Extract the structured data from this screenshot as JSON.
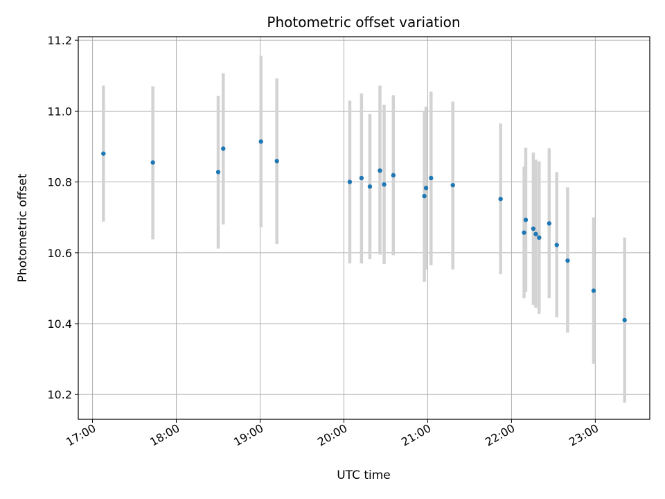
{
  "chart_data": {
    "type": "scatter",
    "title": "Photometric offset variation",
    "xlabel": "UTC time",
    "ylabel": "Photometric offset",
    "x_unit": "hours UTC",
    "xlim": [
      16.83,
      23.65
    ],
    "ylim": [
      10.13,
      11.21
    ],
    "x_ticks": [
      17,
      18,
      19,
      20,
      21,
      22,
      23
    ],
    "x_tick_labels": [
      "17:00",
      "18:00",
      "19:00",
      "20:00",
      "21:00",
      "22:00",
      "23:00"
    ],
    "y_ticks": [
      10.2,
      10.4,
      10.6,
      10.8,
      11.0,
      11.2
    ],
    "y_tick_labels": [
      "10.2",
      "10.4",
      "10.6",
      "10.8",
      "11.0",
      "11.2"
    ],
    "grid": true,
    "marker_color": "#1f77b4",
    "errorbar_color": "#d3d3d3",
    "points": [
      {
        "x": 17.13,
        "y": 10.88,
        "err_low": 10.688,
        "err_high": 11.072
      },
      {
        "x": 17.72,
        "y": 10.855,
        "err_low": 10.638,
        "err_high": 11.07
      },
      {
        "x": 18.5,
        "y": 10.828,
        "err_low": 10.612,
        "err_high": 11.043
      },
      {
        "x": 18.56,
        "y": 10.894,
        "err_low": 10.68,
        "err_high": 11.107
      },
      {
        "x": 19.01,
        "y": 10.914,
        "err_low": 10.672,
        "err_high": 11.156
      },
      {
        "x": 19.2,
        "y": 10.859,
        "err_low": 10.625,
        "err_high": 11.092
      },
      {
        "x": 20.07,
        "y": 10.8,
        "err_low": 10.57,
        "err_high": 11.03
      },
      {
        "x": 20.21,
        "y": 10.811,
        "err_low": 10.57,
        "err_high": 11.05
      },
      {
        "x": 20.31,
        "y": 10.787,
        "err_low": 10.582,
        "err_high": 10.992
      },
      {
        "x": 20.43,
        "y": 10.832,
        "err_low": 10.595,
        "err_high": 11.072
      },
      {
        "x": 20.48,
        "y": 10.793,
        "err_low": 10.568,
        "err_high": 11.018
      },
      {
        "x": 20.59,
        "y": 10.819,
        "err_low": 10.593,
        "err_high": 11.045
      },
      {
        "x": 20.96,
        "y": 10.76,
        "err_low": 10.518,
        "err_high": 11.0
      },
      {
        "x": 20.98,
        "y": 10.783,
        "err_low": 10.553,
        "err_high": 11.013
      },
      {
        "x": 21.04,
        "y": 10.811,
        "err_low": 10.565,
        "err_high": 11.055
      },
      {
        "x": 21.3,
        "y": 10.791,
        "err_low": 10.553,
        "err_high": 11.027
      },
      {
        "x": 21.87,
        "y": 10.752,
        "err_low": 10.54,
        "err_high": 10.965
      },
      {
        "x": 22.15,
        "y": 10.657,
        "err_low": 10.472,
        "err_high": 10.843
      },
      {
        "x": 22.17,
        "y": 10.693,
        "err_low": 10.49,
        "err_high": 10.897
      },
      {
        "x": 22.26,
        "y": 10.668,
        "err_low": 10.453,
        "err_high": 10.883
      },
      {
        "x": 22.29,
        "y": 10.653,
        "err_low": 10.445,
        "err_high": 10.863
      },
      {
        "x": 22.33,
        "y": 10.643,
        "err_low": 10.428,
        "err_high": 10.858
      },
      {
        "x": 22.45,
        "y": 10.683,
        "err_low": 10.472,
        "err_high": 10.895
      },
      {
        "x": 22.54,
        "y": 10.622,
        "err_low": 10.418,
        "err_high": 10.828
      },
      {
        "x": 22.67,
        "y": 10.578,
        "err_low": 10.375,
        "err_high": 10.785
      },
      {
        "x": 22.98,
        "y": 10.493,
        "err_low": 10.287,
        "err_high": 10.7
      },
      {
        "x": 23.35,
        "y": 10.41,
        "err_low": 10.177,
        "err_high": 10.643
      }
    ]
  }
}
